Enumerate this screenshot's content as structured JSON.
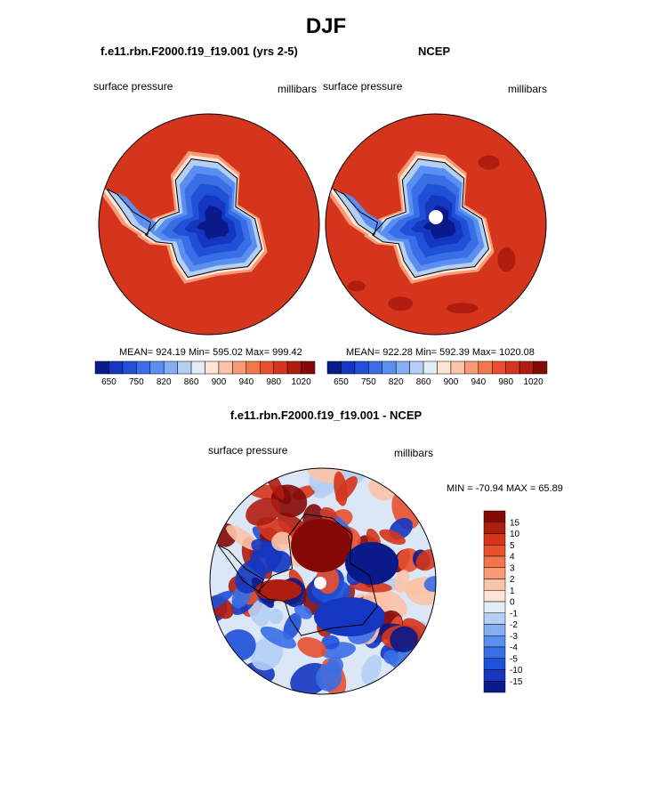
{
  "title": "DJF",
  "panels": [
    {
      "subtitle": "f.e11.rbn.F2000.f19_f19.001 (yrs 2-5)",
      "left_label": "surface pressure",
      "right_label": "millibars",
      "stats": "MEAN= 924.19  Min= 595.02  Max= 999.42"
    },
    {
      "subtitle": "NCEP",
      "left_label": "surface pressure",
      "right_label": "millibars",
      "stats": "MEAN= 922.28  Min= 592.39  Max= 1020.08"
    },
    {
      "subtitle": "f.e11.rbn.F2000.f19_f19.001 - NCEP",
      "left_label": "surface pressure",
      "right_label": "millibars",
      "stats": "MIN = -70.94 MAX =  65.89"
    }
  ],
  "chart_data": [
    {
      "type": "heatmap",
      "title": "f.e11.rbn.F2000.f19_f19.001 (yrs 2-5)",
      "variable": "surface pressure",
      "units": "millibars",
      "mean": 924.19,
      "min": 595.02,
      "max": 999.42,
      "colorbar_levels": [
        650,
        700,
        750,
        800,
        820,
        840,
        860,
        880,
        900,
        920,
        940,
        960,
        980,
        1000,
        1020
      ],
      "colorbar_tick_labels": [
        "650",
        "750",
        "820",
        "860",
        "900",
        "940",
        "980",
        "1020"
      ],
      "colors": [
        "#0a1a8a",
        "#1436c0",
        "#1e50d8",
        "#3a6ee6",
        "#5a8ff0",
        "#86aef2",
        "#b4cff5",
        "#e2ecf7",
        "#fde4d4",
        "#fbc3a8",
        "#f79a75",
        "#f2764c",
        "#e8502e",
        "#d4351c",
        "#b01c0e",
        "#840a06"
      ]
    },
    {
      "type": "heatmap",
      "title": "NCEP",
      "variable": "surface pressure",
      "units": "millibars",
      "mean": 922.28,
      "min": 592.39,
      "max": 1020.08,
      "colorbar_levels": [
        650,
        700,
        750,
        800,
        820,
        840,
        860,
        880,
        900,
        920,
        940,
        960,
        980,
        1000,
        1020
      ],
      "colorbar_tick_labels": [
        "650",
        "750",
        "820",
        "860",
        "900",
        "940",
        "980",
        "1020"
      ],
      "colors": [
        "#0a1a8a",
        "#1436c0",
        "#1e50d8",
        "#3a6ee6",
        "#5a8ff0",
        "#86aef2",
        "#b4cff5",
        "#e2ecf7",
        "#fde4d4",
        "#fbc3a8",
        "#f79a75",
        "#f2764c",
        "#e8502e",
        "#d4351c",
        "#b01c0e",
        "#840a06"
      ]
    },
    {
      "type": "heatmap",
      "title": "f.e11.rbn.F2000.f19_f19.001 - NCEP",
      "variable": "surface pressure",
      "units": "millibars",
      "min": -70.94,
      "max": 65.89,
      "colorbar_tick_labels": [
        "15",
        "10",
        "5",
        "4",
        "3",
        "2",
        "1",
        "0",
        "-1",
        "-2",
        "-3",
        "-4",
        "-5",
        "-10",
        "-15"
      ],
      "colors": [
        "#840a06",
        "#b01c0e",
        "#d4351c",
        "#e8502e",
        "#f2764c",
        "#f79a75",
        "#fbc3a8",
        "#fde4d4",
        "#e2ecf7",
        "#b4cff5",
        "#86aef2",
        "#5a8ff0",
        "#3a6ee6",
        "#1e50d8",
        "#1436c0",
        "#0a1a8a"
      ]
    }
  ]
}
